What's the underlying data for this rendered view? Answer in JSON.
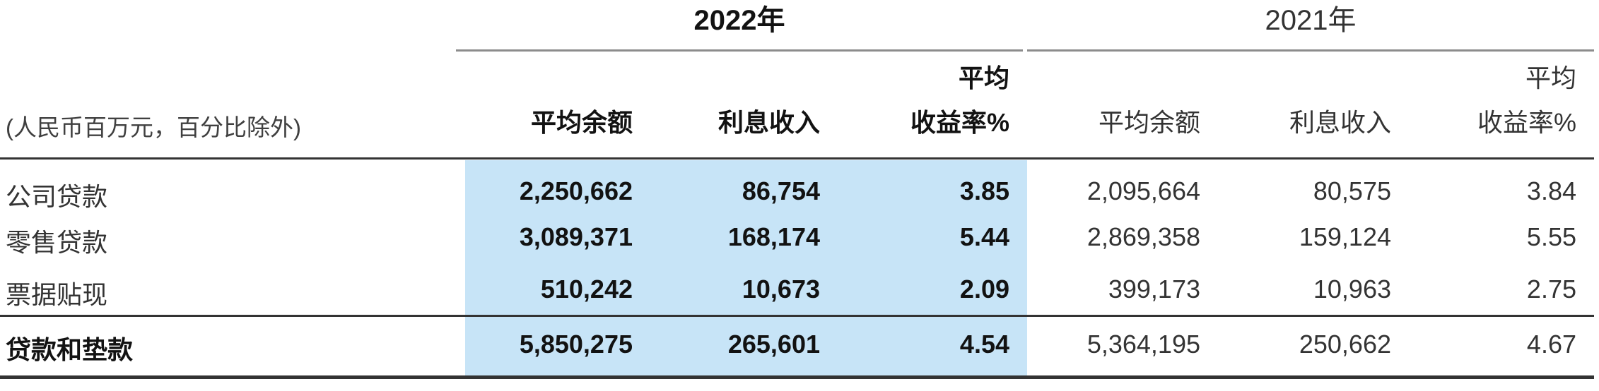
{
  "header": {
    "unit_note": "(人民币百万元，百分比除外)",
    "groups": [
      {
        "year": "2022年",
        "avg_balance": "平均余额",
        "interest_income": "利息收入",
        "yield_line1": "平均",
        "yield_line2": "收益率%"
      },
      {
        "year": "2021年",
        "avg_balance": "平均余额",
        "interest_income": "利息收入",
        "yield_line1": "平均",
        "yield_line2": "收益率%"
      }
    ]
  },
  "body": {
    "rows": [
      {
        "label": "公司贷款",
        "y2022": {
          "avg_balance": "2,250,662",
          "interest_income": "86,754",
          "yield": "3.85"
        },
        "y2021": {
          "avg_balance": "2,095,664",
          "interest_income": "80,575",
          "yield": "3.84"
        }
      },
      {
        "label": "零售贷款",
        "y2022": {
          "avg_balance": "3,089,371",
          "interest_income": "168,174",
          "yield": "5.44"
        },
        "y2021": {
          "avg_balance": "2,869,358",
          "interest_income": "159,124",
          "yield": "5.55"
        }
      },
      {
        "label": "票据贴现",
        "y2022": {
          "avg_balance": "510,242",
          "interest_income": "10,673",
          "yield": "2.09"
        },
        "y2021": {
          "avg_balance": "399,173",
          "interest_income": "10,963",
          "yield": "2.75"
        }
      }
    ],
    "total": {
      "label": "贷款和垫款",
      "y2022": {
        "avg_balance": "5,850,275",
        "interest_income": "265,601",
        "yield": "4.54"
      },
      "y2021": {
        "avg_balance": "5,364,195",
        "interest_income": "250,662",
        "yield": "4.67"
      }
    }
  },
  "colors": {
    "highlight_2022": "#C7E4F7",
    "rule_dark": "#333333",
    "rule_gray": "#8C8C8C",
    "text_bold": "#121212",
    "text_regular": "#333333"
  }
}
